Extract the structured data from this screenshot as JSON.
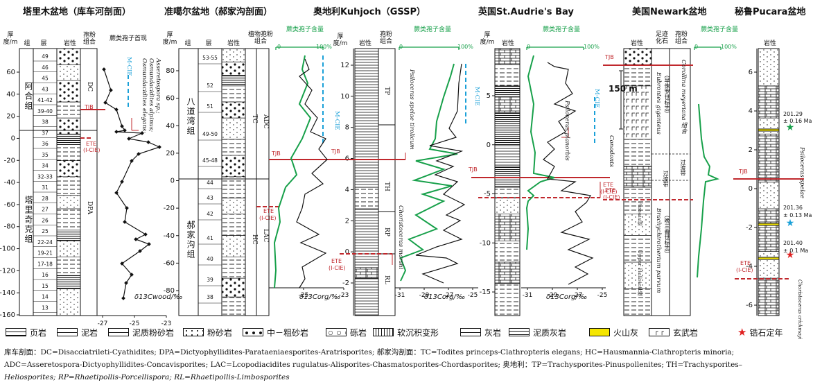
{
  "titles": {
    "p1": "塔里木盆地（库车河剖面）",
    "p2": "准噶尔盆地（郝家沟剖面）",
    "p3": "奥地利Kuhjoch（GSSP）",
    "p4": "英国St.Audrie's Bay",
    "p5": "美国Newark盆地",
    "p6": "秘鲁Pucara盆地"
  },
  "headers": {
    "thick": "厚度/m",
    "group": "组",
    "layer": "层",
    "lith": "岩性",
    "spore": "孢粉组合",
    "fern_first": "蕨类孢子首现",
    "plant_spore": "植物孢粉组合",
    "fern_content": "蕨类孢子含量",
    "trace_fossil": "足迹化石",
    "pct0": "0",
    "pct100": "100%"
  },
  "p1": {
    "ticks": [
      "60",
      "40",
      "20",
      "0",
      "-20",
      "-40",
      "-60",
      "-80",
      "-100",
      "-120",
      "-140",
      "-160"
    ],
    "formations": [
      "阿合组",
      "塔里奇克组"
    ],
    "layers": [
      "49",
      "46",
      "45",
      "43",
      "41-42",
      "39-40",
      "38",
      "37",
      "36",
      "35",
      "34",
      "32-33",
      "31",
      "28",
      "27",
      "26",
      "25",
      "22-24",
      "19-21",
      "17-18",
      "16",
      "15",
      "14",
      "13"
    ],
    "assemblages": [
      "DC",
      "DPA"
    ],
    "spore_names": [
      "Asseretospora sp.;",
      "Osmundacidites alpinus;",
      "Osmundacidites elegans;"
    ],
    "mcie": "M-CIE",
    "tjb": "TJB",
    "ete": "ETE",
    "icie": "(I-CIE)",
    "xticks": [
      "-27",
      "-25",
      "-23"
    ],
    "xlabel": "δ13Cwood/‰"
  },
  "p2": {
    "ticks": [
      "80",
      "60",
      "40",
      "20",
      "0",
      "-20",
      "-40",
      "-60",
      "-80"
    ],
    "formations": [
      "八道湾组",
      "郝家沟组"
    ],
    "layers": [
      "53-55",
      "52",
      "51",
      "49-50",
      "45-48",
      "44",
      "43",
      "42",
      "41",
      "40",
      "39",
      "38"
    ],
    "zones": [
      "TC",
      "ADC",
      "HC",
      "LAC"
    ],
    "mcie": "M-CIE",
    "tjb": "TJB",
    "ete": "ETE",
    "icie": "(I-CIE)",
    "xticks": [
      "-25",
      "-23"
    ],
    "xlabel": "δ13Corg/‰"
  },
  "p3": {
    "ticks": [
      "12",
      "10",
      "8",
      "6",
      "4",
      "2",
      "0",
      "-2"
    ],
    "zones": [
      "TP",
      "TH",
      "RP",
      "RL"
    ],
    "ammonites": [
      "Psiloceras spelae tirolicum",
      "Choristoceras marshi"
    ],
    "mcie": "M-CIE",
    "tjb": "TJB",
    "ete": "ETE",
    "icie": "(I-CIE)",
    "xticks": [
      "-31",
      "-29",
      "-27",
      "-25"
    ],
    "xlabel": "δ13Corg/‰"
  },
  "p4": {
    "ticks": [
      "5",
      "0",
      "-5",
      "-10",
      "-15"
    ],
    "ammonites": [
      "Psiloceras planorbis",
      "Conodonts"
    ],
    "mcie": "M-CIE",
    "tjb": "TJB",
    "ete": "ETE",
    "icie": "(I-CIE)",
    "xticks": [
      "-31",
      "-29",
      "-27",
      "-25"
    ],
    "xlabel": "δ13Corg/‰"
  },
  "p5": {
    "scale": "150 m",
    "tjb": "TJB",
    "ete": "ETE",
    "icie": "(I-CIE)",
    "fossils_upper": [
      "Eubrontes giganteus",
      "（早侏罗世标志）"
    ],
    "fossils_lower": [
      "Brachychirotherium parvum",
      "（晚三叠世标志）"
    ],
    "spore_upper": "Corollina meyeriana 组合",
    "transition": "过渡带",
    "transition2": "过渡带",
    "lower_names": [
      "Passaic组",
      "Upper Hallstatt组"
    ]
  },
  "p6": {
    "ticks": [
      "6",
      "4",
      "2",
      "0",
      "-2",
      "-4",
      "-6"
    ],
    "ages": [
      {
        "age": "201.29",
        "err": "± 0.16 Ma"
      },
      {
        "age": "201.36",
        "err": "± 0.13 Ma"
      },
      {
        "age": "201.40",
        "err": "± 0.1 Ma"
      }
    ],
    "ammonites": [
      "Psiloceras spelae",
      "Choristoceras crickmayi"
    ],
    "tjb": "TJB",
    "ete": "ETE",
    "icie": "(I-CIE)"
  },
  "legend": [
    {
      "key": "shale",
      "label": "页岩"
    },
    {
      "key": "mudstone",
      "label": "泥岩"
    },
    {
      "key": "muddy-siltstone",
      "label": "泥质粉砂岩"
    },
    {
      "key": "siltstone",
      "label": "粉砂岩"
    },
    {
      "key": "sandstone",
      "label": "中－粗砂岩"
    },
    {
      "key": "conglomerate",
      "label": "砾岩"
    },
    {
      "key": "soft-sediment",
      "label": "软沉积变形"
    },
    {
      "key": "limestone",
      "label": "灰岩"
    },
    {
      "key": "marly-limestone",
      "label": "泥质灰岩"
    },
    {
      "key": "ash",
      "label": "火山灰"
    },
    {
      "key": "basalt",
      "label": "玄武岩"
    },
    {
      "key": "zircon",
      "label": "锆石定年"
    }
  ],
  "footnote": [
    "库车剖面：DC=Disacciatrileti-Cyathidites; DPA=Dictyophyllidites-Parataeniaesporites-Aratrisporites; 郝家沟剖面：TC=Todites princeps-Clathropteris elegans; HC=Hausmannia-Clathropteris minoria;",
    "ADC=Asseretospora-Dictyophyllidites-Concavisporites; LAC=Lcopodiacidites rugulatus-Alisporites-Chasmatosporites-Chordasporites; 奥地利：TP=Trachysporites-Pinuspollenites; TH=Trachysporites–",
    "Heliosporites; RP=Rhaetipollis-Porcellispora; RL=Rhaetipollis-Limbosporites"
  ],
  "colors": {
    "tjb": "#c0282d",
    "mcie": "#1aa0d8",
    "fern": "#17a04a",
    "ash": "#f5e600"
  }
}
